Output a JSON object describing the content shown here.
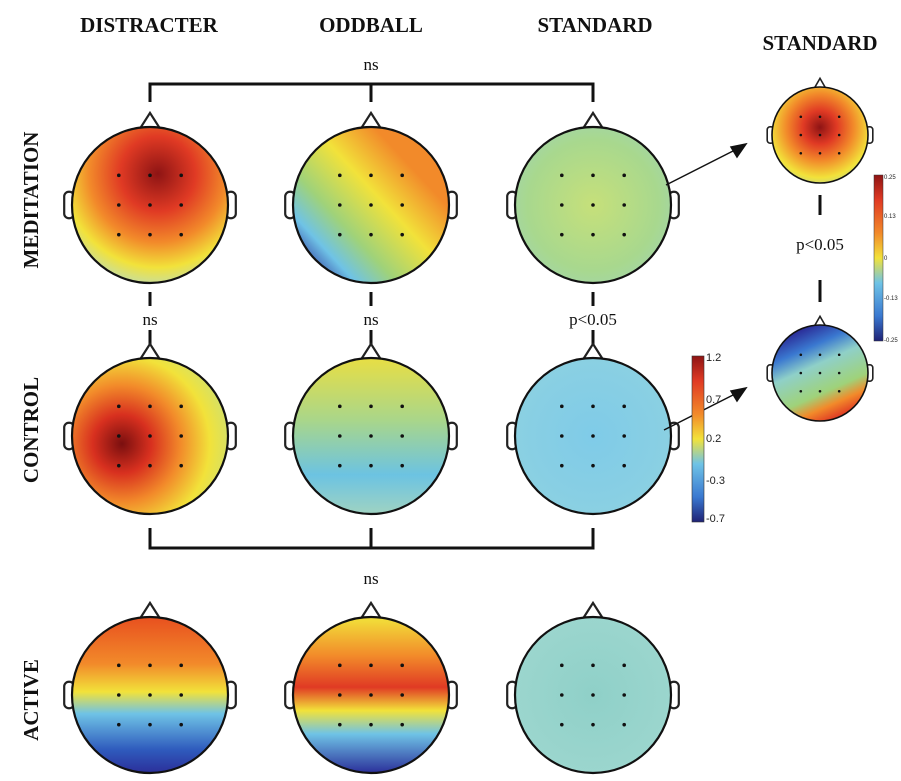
{
  "columns": [
    "DISTRACTER",
    "ODDBALL",
    "STANDARD"
  ],
  "inset_title": "STANDARD",
  "rows": [
    "MEDITATION",
    "CONTROL",
    "ACTIVE"
  ],
  "stats": {
    "top_bracket": "ns",
    "bottom_bracket": "ns",
    "distracter_med_vs_ctrl": "ns",
    "oddball_med_vs_ctrl": "ns",
    "standard_med_vs_ctrl": "p<0.05",
    "inset_comparison": "p<0.05"
  },
  "main_colorbar": {
    "ticks": [
      "1.2",
      "0.7",
      "0.2",
      "-0.3",
      "-0.7"
    ]
  },
  "inset_colorbar": {
    "ticks": [
      "0.25",
      "0.13",
      "0",
      "-0.13",
      "-0.25"
    ]
  },
  "colors": {
    "deep_blue": "#2b2f9a",
    "blue": "#3a78d0",
    "cyan": "#6fc3e6",
    "green": "#9fd27a",
    "yellow": "#f2e23a",
    "orange": "#f28a2a",
    "red": "#e03a24",
    "dark_red": "#8e1414",
    "light_cyan_bg": "#a8dbe8"
  }
}
